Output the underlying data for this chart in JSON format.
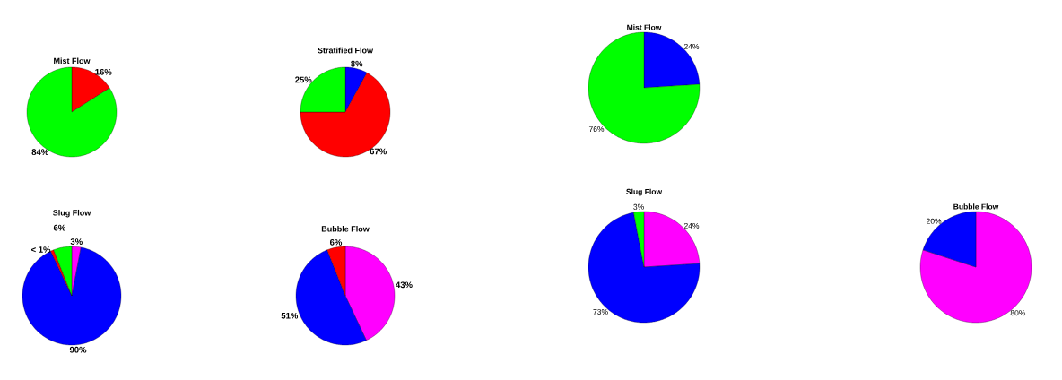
{
  "chart_data": [
    {
      "type": "pie",
      "title": "Mist Flow",
      "categories": [
        null,
        null
      ],
      "values": [
        16,
        84
      ],
      "colors": [
        "#ff0000",
        "#00ff00"
      ],
      "value_labels": [
        "16%",
        "84%"
      ]
    },
    {
      "type": "pie",
      "title": "Stratified Flow",
      "categories": [
        null,
        null,
        null
      ],
      "values": [
        8,
        67,
        25
      ],
      "colors": [
        "#0000ff",
        "#ff0000",
        "#00ff00"
      ],
      "value_labels": [
        "8%",
        "67%",
        "25%"
      ]
    },
    {
      "type": "pie",
      "title": "Slug Flow",
      "categories": [
        null,
        null,
        null,
        null
      ],
      "values": [
        3,
        90,
        1,
        6
      ],
      "colors": [
        "#ff00ff",
        "#0000ff",
        "#ff0000",
        "#00ff00"
      ],
      "value_labels": [
        "3%",
        "90%",
        "< 1%",
        "6%"
      ]
    },
    {
      "type": "pie",
      "title": "Bubble Flow",
      "categories": [
        null,
        null,
        null
      ],
      "values": [
        43,
        51,
        6
      ],
      "colors": [
        "#ff00ff",
        "#0000ff",
        "#ff0000"
      ],
      "value_labels": [
        "43%",
        "51%",
        "6%"
      ]
    },
    {
      "type": "pie",
      "title": "Mist Flow",
      "categories": [
        null,
        null
      ],
      "values": [
        24,
        76
      ],
      "colors": [
        "#0000ff",
        "#00ff00"
      ],
      "value_labels": [
        "24%",
        "76%"
      ]
    },
    {
      "type": "pie",
      "title": "Slug Flow",
      "categories": [
        null,
        null,
        null
      ],
      "values": [
        24,
        73,
        3
      ],
      "colors": [
        "#ff00ff",
        "#0000ff",
        "#00ff00"
      ],
      "value_labels": [
        "24%",
        "73%",
        "3%"
      ]
    },
    {
      "type": "pie",
      "title": "Bubble Flow",
      "categories": [
        null,
        null
      ],
      "values": [
        80,
        20
      ],
      "colors": [
        "#ff00ff",
        "#0000ff"
      ],
      "value_labels": [
        "80%",
        "20%"
      ]
    }
  ]
}
